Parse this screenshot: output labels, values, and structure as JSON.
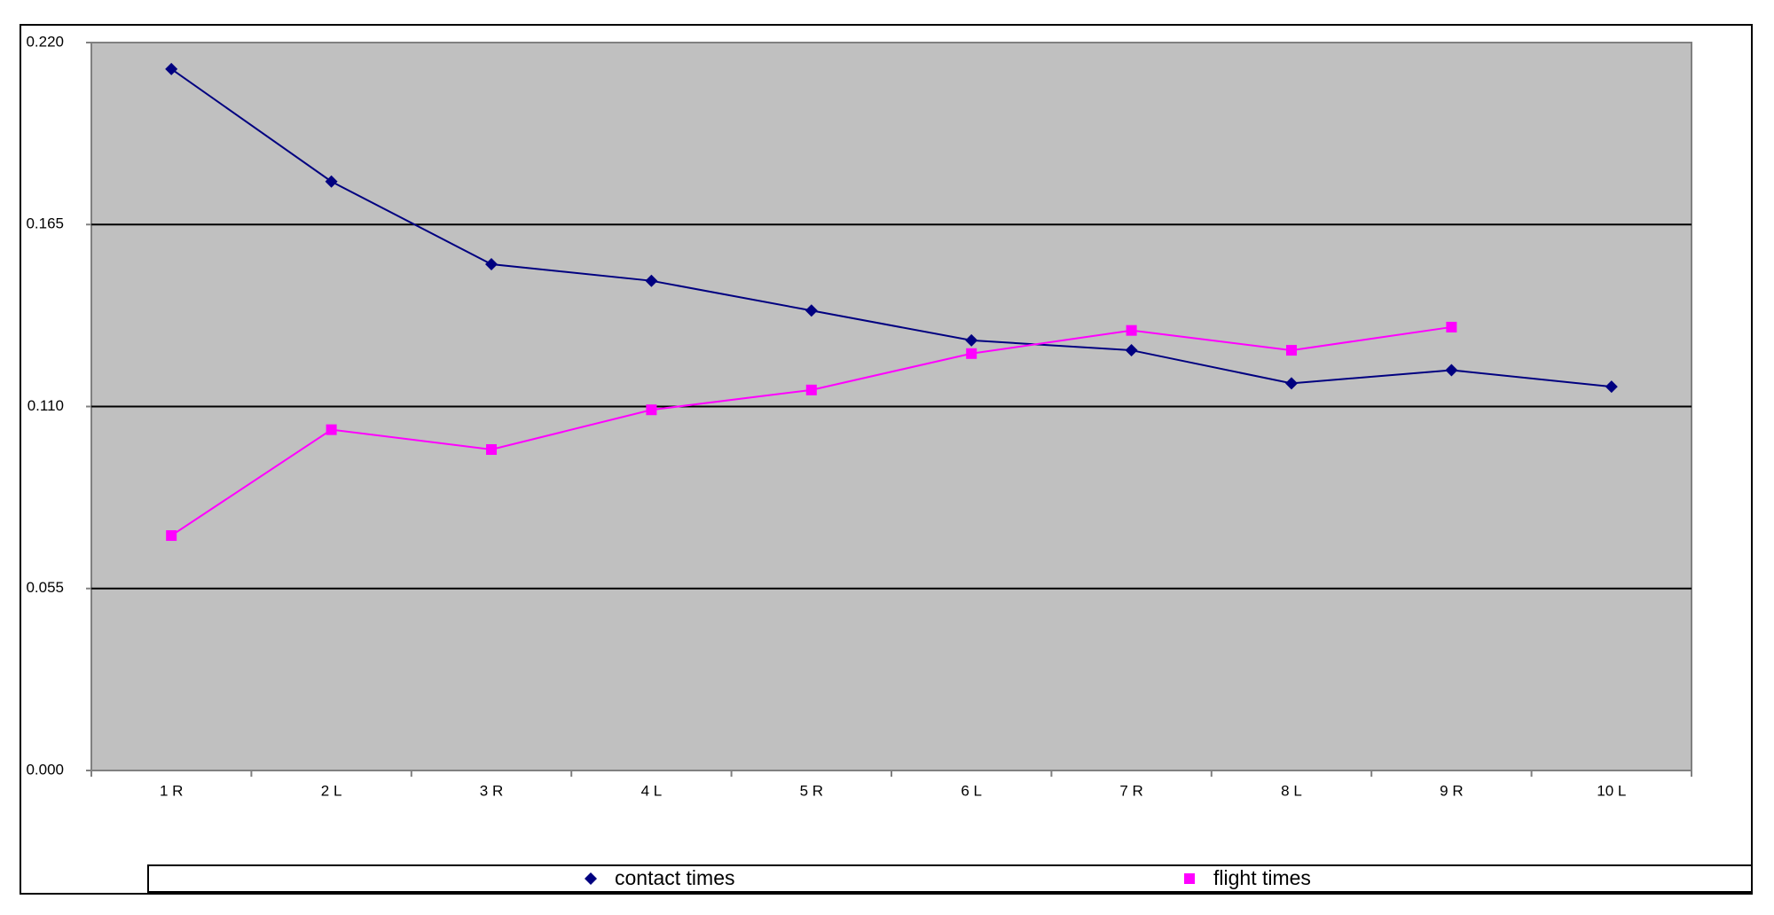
{
  "chart_data": {
    "type": "line",
    "categories": [
      "1 R",
      "2 L",
      "3 R",
      "4 L",
      "5 R",
      "6 L",
      "7 R",
      "8 L",
      "9 R",
      "10 L"
    ],
    "series": [
      {
        "name": "contact times",
        "color": "#000080",
        "marker": "diamond",
        "values": [
          0.212,
          0.178,
          0.153,
          0.148,
          0.139,
          0.13,
          0.127,
          0.117,
          0.121,
          0.116
        ]
      },
      {
        "name": "flight times",
        "color": "#ff00ff",
        "marker": "square",
        "values": [
          0.071,
          0.103,
          0.097,
          0.109,
          0.115,
          0.126,
          0.133,
          0.127,
          0.134,
          null
        ]
      }
    ],
    "ylim": [
      0,
      0.22
    ],
    "yticks": [
      {
        "value": 0,
        "label": "0.000"
      },
      {
        "value": 0.055,
        "label": "0.055"
      },
      {
        "value": 0.11,
        "label": "0.110"
      },
      {
        "value": 0.165,
        "label": "0.165"
      },
      {
        "value": 0.22,
        "label": "0.220"
      }
    ],
    "grid": true,
    "plot_background": "#c0c0c0",
    "legend": "bottom"
  }
}
